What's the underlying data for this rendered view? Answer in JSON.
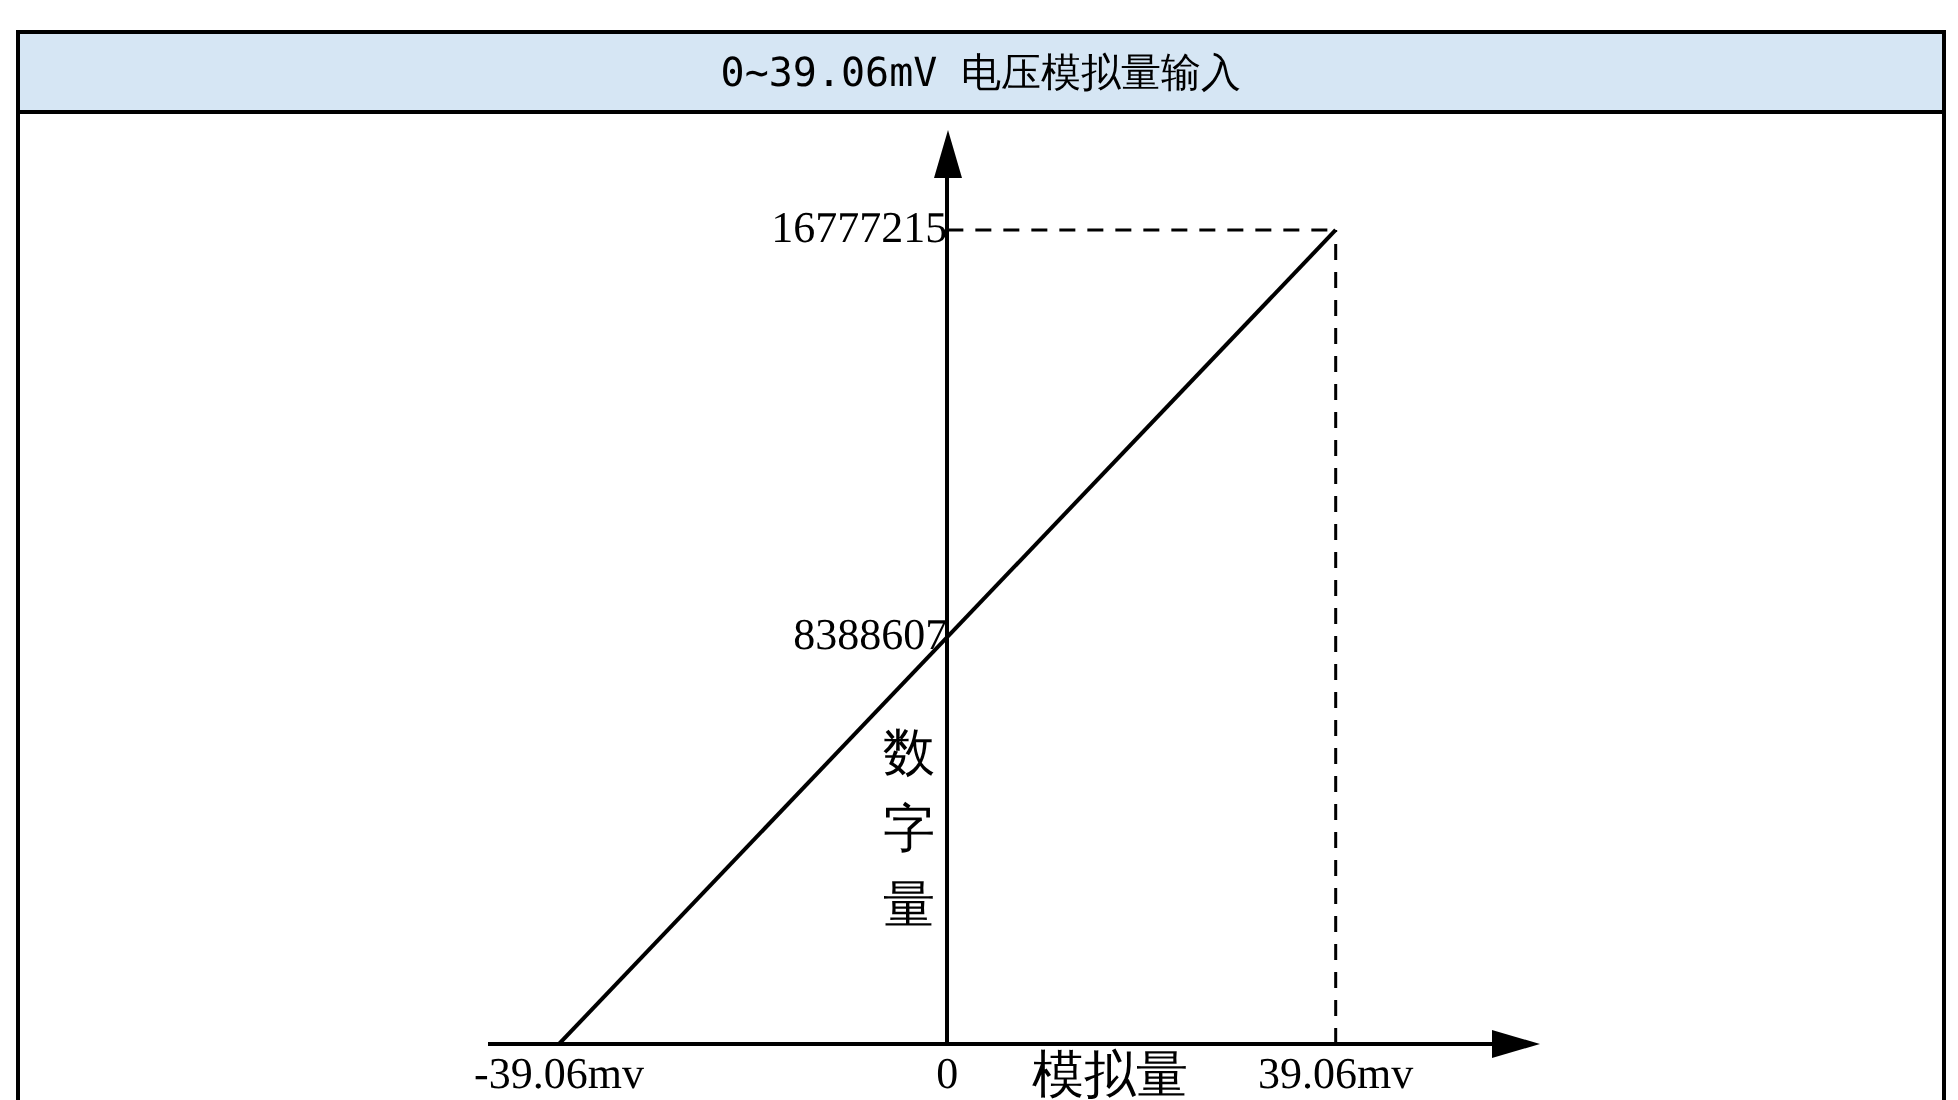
{
  "chart_data": {
    "type": "line",
    "title": "0~39.06mV 电压模拟量输入",
    "xlabel": "模拟量",
    "ylabel": "数字量",
    "x": [
      -39.06,
      39.06
    ],
    "series": [
      {
        "color": "#000000",
        "values": [
          0,
          16777215
        ]
      }
    ],
    "xlim": [
      -46,
      58
    ],
    "ylim": [
      0,
      18500000
    ],
    "xticks": [
      {
        "value": -39.06,
        "label": "-39.06mv"
      },
      0,
      {
        "value": 39.06,
        "label": "39.06mv"
      }
    ],
    "yticks": [
      8388607,
      16777215
    ],
    "ref_lines": [
      {
        "axis": "x",
        "value": 39.06,
        "line_style": "dashed",
        "color": "#000000"
      },
      {
        "axis": "y",
        "value": 16777215,
        "line_style": "dashed",
        "color": "#000000"
      }
    ],
    "grid": false,
    "legend": false,
    "marker": "none",
    "line_style": "solid"
  }
}
